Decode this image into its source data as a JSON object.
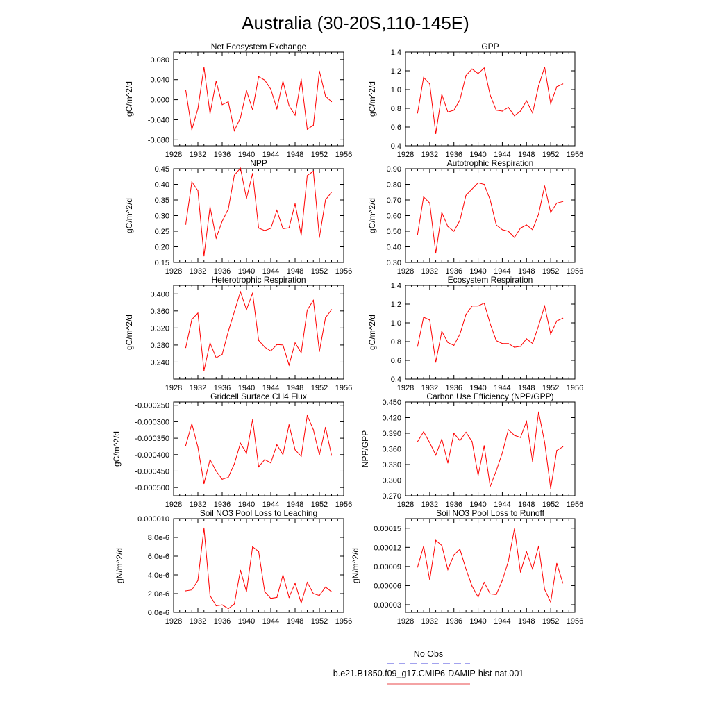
{
  "title": "Australia (30-20S,110-145E)",
  "legend": {
    "entries": [
      {
        "label": "No Obs",
        "color": "#4444dd",
        "dash": true
      },
      {
        "label": "b.e21.B1850.f09_g17.CMIP6-DAMIP-hist-nat.001",
        "color": "#e8474a",
        "dash": false
      }
    ]
  },
  "chart_data": [
    {
      "type": "line",
      "title": "Net Ecosystem Exchange",
      "ylabel": "gC/m^2/d",
      "xlim": [
        1928,
        1956
      ],
      "xticks": [
        "1928",
        "1932",
        "1936",
        "1940",
        "1944",
        "1948",
        "1952",
        "1956"
      ],
      "ylim": [
        -0.092,
        0.095
      ],
      "yticks": [
        "-0.080",
        "-0.040",
        "0.000",
        "0.040",
        "0.080"
      ],
      "series": [
        {
          "color": "#ff0000",
          "x": [
            1930,
            1931,
            1932,
            1933,
            1934,
            1935,
            1936,
            1937,
            1938,
            1939,
            1940,
            1941,
            1942,
            1943,
            1944,
            1945,
            1946,
            1947,
            1948,
            1949,
            1950,
            1951,
            1952,
            1953,
            1954
          ],
          "values": [
            0.019,
            -0.06,
            -0.018,
            0.065,
            -0.028,
            0.037,
            -0.01,
            -0.004,
            -0.062,
            -0.036,
            0.018,
            -0.02,
            0.046,
            0.039,
            0.021,
            -0.018,
            0.037,
            -0.012,
            -0.031,
            0.041,
            -0.059,
            -0.051,
            0.057,
            0.007,
            -0.004
          ]
        }
      ]
    },
    {
      "type": "line",
      "title": "GPP",
      "ylabel": "gC/m^2/d",
      "xlim": [
        1928,
        1956
      ],
      "xticks": [
        "1928",
        "1932",
        "1936",
        "1940",
        "1944",
        "1948",
        "1952",
        "1956"
      ],
      "ylim": [
        0.4,
        1.4
      ],
      "yticks": [
        "0.4",
        "0.6",
        "0.8",
        "1.0",
        "1.2",
        "1.4"
      ],
      "series": [
        {
          "color": "#ff0000",
          "x": [
            1930,
            1931,
            1932,
            1933,
            1934,
            1935,
            1936,
            1937,
            1938,
            1939,
            1940,
            1941,
            1942,
            1943,
            1944,
            1945,
            1946,
            1947,
            1948,
            1949,
            1950,
            1951,
            1952,
            1953,
            1954
          ],
          "values": [
            0.75,
            1.13,
            1.06,
            0.53,
            0.95,
            0.76,
            0.78,
            0.89,
            1.15,
            1.22,
            1.17,
            1.23,
            0.94,
            0.78,
            0.77,
            0.81,
            0.72,
            0.77,
            0.88,
            0.75,
            1.04,
            1.24,
            0.85,
            1.03,
            1.06
          ]
        }
      ]
    },
    {
      "type": "line",
      "title": "NPP",
      "ylabel": "gC/m^2/d",
      "xlim": [
        1928,
        1956
      ],
      "xticks": [
        "1928",
        "1932",
        "1936",
        "1940",
        "1944",
        "1948",
        "1952",
        "1956"
      ],
      "ylim": [
        0.15,
        0.45
      ],
      "yticks": [
        "0.15",
        "0.20",
        "0.25",
        "0.30",
        "0.35",
        "0.40",
        "0.45"
      ],
      "series": [
        {
          "color": "#ff0000",
          "x": [
            1930,
            1931,
            1932,
            1933,
            1934,
            1935,
            1936,
            1937,
            1938,
            1939,
            1940,
            1941,
            1942,
            1943,
            1944,
            1945,
            1946,
            1947,
            1948,
            1949,
            1950,
            1951,
            1952,
            1953,
            1954
          ],
          "values": [
            0.272,
            0.408,
            0.38,
            0.171,
            0.328,
            0.228,
            0.282,
            0.321,
            0.429,
            0.452,
            0.355,
            0.435,
            0.26,
            0.252,
            0.259,
            0.317,
            0.258,
            0.261,
            0.338,
            0.237,
            0.428,
            0.442,
            0.23,
            0.35,
            0.375
          ]
        }
      ]
    },
    {
      "type": "line",
      "title": "Autotrophic Respiration",
      "ylabel": "gC/m^2/d",
      "xlim": [
        1928,
        1956
      ],
      "xticks": [
        "1928",
        "1932",
        "1936",
        "1940",
        "1944",
        "1948",
        "1952",
        "1956"
      ],
      "ylim": [
        0.3,
        0.9
      ],
      "yticks": [
        "0.30",
        "0.40",
        "0.50",
        "0.60",
        "0.70",
        "0.80",
        "0.90"
      ],
      "series": [
        {
          "color": "#ff0000",
          "x": [
            1930,
            1931,
            1932,
            1933,
            1934,
            1935,
            1936,
            1937,
            1938,
            1939,
            1940,
            1941,
            1942,
            1943,
            1944,
            1945,
            1946,
            1947,
            1948,
            1949,
            1950,
            1951,
            1952,
            1953,
            1954
          ],
          "values": [
            0.48,
            0.72,
            0.68,
            0.36,
            0.62,
            0.53,
            0.5,
            0.57,
            0.73,
            0.77,
            0.81,
            0.8,
            0.7,
            0.54,
            0.51,
            0.5,
            0.46,
            0.52,
            0.54,
            0.51,
            0.61,
            0.79,
            0.62,
            0.68,
            0.69
          ]
        }
      ]
    },
    {
      "type": "line",
      "title": "Heterotrophic Respiration",
      "ylabel": "gC/m^2/d",
      "xlim": [
        1928,
        1956
      ],
      "xticks": [
        "1928",
        "1932",
        "1936",
        "1940",
        "1944",
        "1948",
        "1952",
        "1956"
      ],
      "ylim": [
        0.2,
        0.42
      ],
      "yticks": [
        "0.240",
        "0.280",
        "0.320",
        "0.360",
        "0.400"
      ],
      "series": [
        {
          "color": "#ff0000",
          "x": [
            1930,
            1931,
            1932,
            1933,
            1934,
            1935,
            1936,
            1937,
            1938,
            1939,
            1940,
            1941,
            1942,
            1943,
            1944,
            1945,
            1946,
            1947,
            1948,
            1949,
            1950,
            1951,
            1952,
            1953,
            1954
          ],
          "values": [
            0.274,
            0.34,
            0.355,
            0.22,
            0.285,
            0.25,
            0.258,
            0.312,
            0.358,
            0.405,
            0.363,
            0.402,
            0.291,
            0.275,
            0.266,
            0.281,
            0.28,
            0.233,
            0.285,
            0.262,
            0.362,
            0.385,
            0.265,
            0.344,
            0.363
          ]
        }
      ]
    },
    {
      "type": "line",
      "title": "Ecosystem Respiration",
      "ylabel": "gC/m^2/d",
      "xlim": [
        1928,
        1956
      ],
      "xticks": [
        "1928",
        "1932",
        "1936",
        "1940",
        "1944",
        "1948",
        "1952",
        "1956"
      ],
      "ylim": [
        0.4,
        1.4
      ],
      "yticks": [
        "0.4",
        "0.6",
        "0.8",
        "1.0",
        "1.2",
        "1.4"
      ],
      "series": [
        {
          "color": "#ff0000",
          "x": [
            1930,
            1931,
            1932,
            1933,
            1934,
            1935,
            1936,
            1937,
            1938,
            1939,
            1940,
            1941,
            1942,
            1943,
            1944,
            1945,
            1946,
            1947,
            1948,
            1949,
            1950,
            1951,
            1952,
            1953,
            1954
          ],
          "values": [
            0.75,
            1.06,
            1.03,
            0.58,
            0.91,
            0.79,
            0.76,
            0.88,
            1.09,
            1.18,
            1.18,
            1.21,
            0.99,
            0.81,
            0.78,
            0.78,
            0.74,
            0.75,
            0.83,
            0.78,
            0.97,
            1.18,
            0.88,
            1.02,
            1.05
          ]
        }
      ]
    },
    {
      "type": "line",
      "title": "Gridcell Surface CH4 Flux",
      "ylabel": "gC/m^2/d",
      "xlim": [
        1928,
        1956
      ],
      "xticks": [
        "1928",
        "1932",
        "1936",
        "1940",
        "1944",
        "1948",
        "1952",
        "1956"
      ],
      "ylim": [
        -0.000525,
        -0.00024
      ],
      "yticks": [
        "-0.000500",
        "-0.000450",
        "-0.000400",
        "-0.000350",
        "-0.000300",
        "-0.000250"
      ],
      "series": [
        {
          "color": "#ff0000",
          "x": [
            1930,
            1931,
            1932,
            1933,
            1934,
            1935,
            1936,
            1937,
            1938,
            1939,
            1940,
            1941,
            1942,
            1943,
            1944,
            1945,
            1946,
            1947,
            1948,
            1949,
            1950,
            1951,
            1952,
            1953,
            1954
          ],
          "values": [
            -0.000372,
            -0.000306,
            -0.000377,
            -0.000488,
            -0.000415,
            -0.00045,
            -0.000475,
            -0.000469,
            -0.000428,
            -0.000365,
            -0.000396,
            -0.000294,
            -0.000437,
            -0.000415,
            -0.000425,
            -0.00037,
            -0.0004,
            -0.000309,
            -0.000385,
            -0.000405,
            -0.000281,
            -0.000324,
            -0.000401,
            -0.000317,
            -0.000402
          ]
        }
      ]
    },
    {
      "type": "line",
      "title": "Carbon Use Efficiency (NPP/GPP)",
      "ylabel": "NPP/GPP",
      "xlim": [
        1928,
        1956
      ],
      "xticks": [
        "1928",
        "1932",
        "1936",
        "1940",
        "1944",
        "1948",
        "1952",
        "1956"
      ],
      "ylim": [
        0.27,
        0.45
      ],
      "yticks": [
        "0.270",
        "0.300",
        "0.330",
        "0.360",
        "0.390",
        "0.420",
        "0.450"
      ],
      "series": [
        {
          "color": "#ff0000",
          "x": [
            1930,
            1931,
            1932,
            1933,
            1934,
            1935,
            1936,
            1937,
            1938,
            1939,
            1940,
            1941,
            1942,
            1943,
            1944,
            1945,
            1946,
            1947,
            1948,
            1949,
            1950,
            1951,
            1952,
            1953,
            1954
          ],
          "values": [
            0.374,
            0.393,
            0.372,
            0.348,
            0.379,
            0.333,
            0.39,
            0.376,
            0.392,
            0.374,
            0.309,
            0.366,
            0.288,
            0.318,
            0.352,
            0.397,
            0.386,
            0.382,
            0.413,
            0.336,
            0.431,
            0.373,
            0.284,
            0.357,
            0.364
          ]
        }
      ]
    },
    {
      "type": "line",
      "title": "Soil NO3 Pool Loss to Leaching",
      "ylabel": "gN/m^2/d",
      "xlim": [
        1928,
        1956
      ],
      "xticks": [
        "1928",
        "1932",
        "1936",
        "1940",
        "1944",
        "1948",
        "1952",
        "1956"
      ],
      "ylim": [
        0.0,
        1e-05
      ],
      "yticks": [
        "0.0e-6",
        "2.0e-6",
        "4.0e-6",
        "6.0e-6",
        "8.0e-6",
        "0.000010"
      ],
      "series": [
        {
          "color": "#ff0000",
          "x": [
            1930,
            1931,
            1932,
            1933,
            1934,
            1935,
            1936,
            1937,
            1938,
            1939,
            1940,
            1941,
            1942,
            1943,
            1944,
            1945,
            1946,
            1947,
            1948,
            1949,
            1950,
            1951,
            1952,
            1953,
            1954
          ],
          "values": [
            2.3e-06,
            2.4e-06,
            3.4e-06,
            9e-06,
            1.8e-06,
            7e-07,
            8e-07,
            4e-07,
            9e-07,
            4.5e-06,
            2.2e-06,
            7e-06,
            6.5e-06,
            2.2e-06,
            1.5e-06,
            1.6e-06,
            4e-06,
            1.6e-06,
            3.1e-06,
            1e-06,
            3.2e-06,
            2e-06,
            1.8e-06,
            2.7e-06,
            2.2e-06
          ]
        }
      ]
    },
    {
      "type": "line",
      "title": "Soil NO3 Pool Loss to Runoff",
      "ylabel": "gN/m^2/d",
      "xlim": [
        1928,
        1956
      ],
      "xticks": [
        "1928",
        "1932",
        "1936",
        "1940",
        "1944",
        "1948",
        "1952",
        "1956"
      ],
      "ylim": [
        1.8e-05,
        0.000165
      ],
      "yticks": [
        "0.00003",
        "0.00006",
        "0.00009",
        "0.00012",
        "0.00015"
      ],
      "series": [
        {
          "color": "#ff0000",
          "x": [
            1930,
            1931,
            1932,
            1933,
            1934,
            1935,
            1936,
            1937,
            1938,
            1939,
            1940,
            1941,
            1942,
            1943,
            1944,
            1945,
            1946,
            1947,
            1948,
            1949,
            1950,
            1951,
            1952,
            1953,
            1954
          ],
          "values": [
            8.9e-05,
            0.000122,
            6.9e-05,
            0.000131,
            0.000123,
            8.5e-05,
            0.000108,
            0.000117,
            8.6e-05,
            5.9e-05,
            4.2e-05,
            6.5e-05,
            4.7e-05,
            4.6e-05,
            6.8e-05,
            9.8e-05,
            0.000149,
            8.1e-05,
            0.000113,
            8.6e-05,
            0.000122,
            5.4e-05,
            3.4e-05,
            9.5e-05,
            6.4e-05
          ]
        }
      ]
    }
  ]
}
